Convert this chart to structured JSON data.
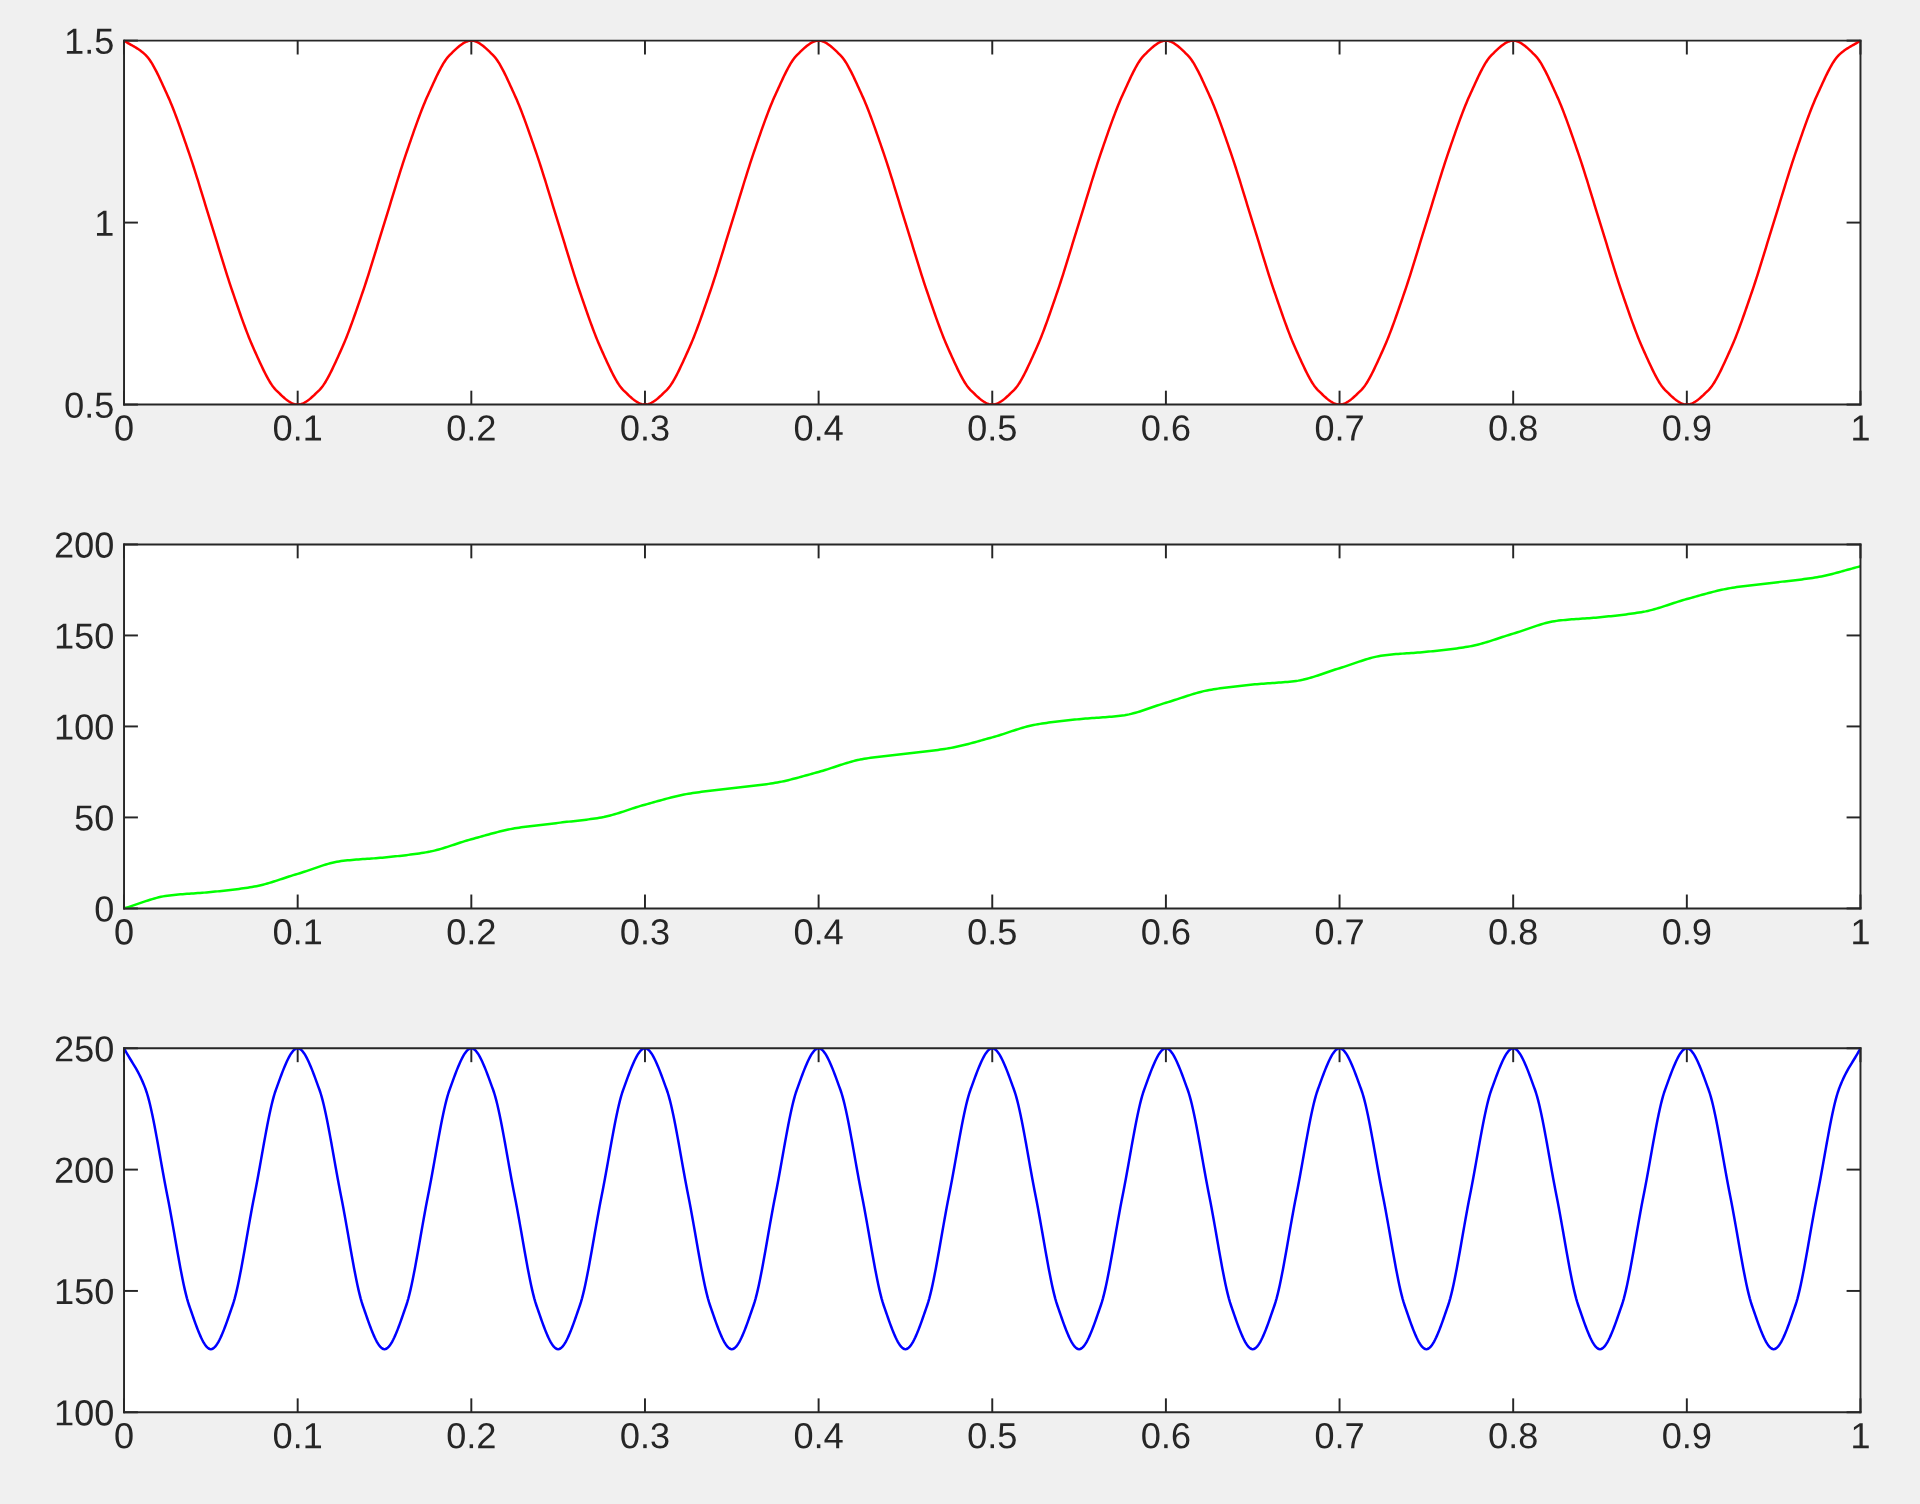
{
  "chart_data": [
    {
      "type": "line",
      "xlim": [
        0,
        1
      ],
      "ylim": [
        0.5,
        1.5
      ],
      "xticks": [
        0,
        0.1,
        0.2,
        0.3,
        0.4,
        0.5,
        0.6,
        0.7,
        0.8,
        0.9,
        1
      ],
      "yticks": [
        0.5,
        1,
        1.5
      ],
      "series": [
        {
          "color": "#ff0000",
          "x": [
            0,
            0.0125,
            0.025,
            0.0375,
            0.05,
            0.0625,
            0.075,
            0.0875,
            0.1,
            0.1125,
            0.125,
            0.1375,
            0.15,
            0.1625,
            0.175,
            0.1875,
            0.2,
            0.2125,
            0.225,
            0.2375,
            0.25,
            0.2625,
            0.275,
            0.2875,
            0.3,
            0.3125,
            0.325,
            0.3375,
            0.35,
            0.3625,
            0.375,
            0.3875,
            0.4,
            0.4125,
            0.425,
            0.4375,
            0.45,
            0.4625,
            0.475,
            0.4875,
            0.5,
            0.5125,
            0.525,
            0.5375,
            0.55,
            0.5625,
            0.575,
            0.5875,
            0.6,
            0.6125,
            0.625,
            0.6375,
            0.65,
            0.6625,
            0.675,
            0.6875,
            0.7,
            0.7125,
            0.725,
            0.7375,
            0.75,
            0.7625,
            0.775,
            0.7875,
            0.8,
            0.8125,
            0.825,
            0.8375,
            0.85,
            0.8625,
            0.875,
            0.8875,
            0.9,
            0.9125,
            0.925,
            0.9375,
            0.95,
            0.9625,
            0.975,
            0.9875,
            1
          ],
          "values": [
            1.5,
            1.46,
            1.35,
            1.19,
            1,
            0.81,
            0.65,
            0.54,
            0.5,
            0.54,
            0.65,
            0.81,
            1,
            1.19,
            1.35,
            1.46,
            1.5,
            1.46,
            1.35,
            1.19,
            1,
            0.81,
            0.65,
            0.54,
            0.5,
            0.54,
            0.65,
            0.81,
            1,
            1.19,
            1.35,
            1.46,
            1.5,
            1.46,
            1.35,
            1.19,
            1,
            0.81,
            0.65,
            0.54,
            0.5,
            0.54,
            0.65,
            0.81,
            1,
            1.19,
            1.35,
            1.46,
            1.5,
            1.46,
            1.35,
            1.19,
            1,
            0.81,
            0.65,
            0.54,
            0.5,
            0.54,
            0.65,
            0.81,
            1,
            1.19,
            1.35,
            1.46,
            1.5,
            1.46,
            1.35,
            1.19,
            1,
            0.81,
            0.65,
            0.54,
            0.5,
            0.54,
            0.65,
            0.81,
            1,
            1.19,
            1.35,
            1.46,
            1.5
          ]
        }
      ]
    },
    {
      "type": "line",
      "xlim": [
        0,
        1
      ],
      "ylim": [
        0,
        200
      ],
      "xticks": [
        0,
        0.1,
        0.2,
        0.3,
        0.4,
        0.5,
        0.6,
        0.7,
        0.8,
        0.9,
        1
      ],
      "yticks": [
        0,
        50,
        100,
        150,
        200
      ],
      "series": [
        {
          "color": "#00ff00",
          "x": [
            0,
            0.025,
            0.05,
            0.075,
            0.1,
            0.125,
            0.15,
            0.175,
            0.2,
            0.225,
            0.25,
            0.275,
            0.3,
            0.325,
            0.35,
            0.375,
            0.4,
            0.425,
            0.45,
            0.475,
            0.5,
            0.525,
            0.55,
            0.575,
            0.6,
            0.625,
            0.65,
            0.675,
            0.7,
            0.725,
            0.75,
            0.775,
            0.8,
            0.825,
            0.85,
            0.875,
            0.9,
            0.925,
            0.95,
            0.975,
            1
          ],
          "values": [
            0,
            7,
            9,
            12,
            19,
            26,
            28,
            31,
            38,
            44,
            47,
            50,
            57,
            63,
            66,
            69,
            75,
            82,
            85,
            88,
            94,
            101,
            104,
            106,
            113,
            120,
            123,
            125,
            132,
            139,
            141,
            144,
            151,
            158,
            160,
            163,
            170,
            176,
            179,
            182,
            188
          ]
        }
      ]
    },
    {
      "type": "line",
      "xlim": [
        0,
        1
      ],
      "ylim": [
        100,
        250
      ],
      "xticks": [
        0,
        0.1,
        0.2,
        0.3,
        0.4,
        0.5,
        0.6,
        0.7,
        0.8,
        0.9,
        1
      ],
      "yticks": [
        100,
        150,
        200,
        250
      ],
      "series": [
        {
          "color": "#0000ff",
          "x": [
            0,
            0.0125,
            0.025,
            0.0375,
            0.05,
            0.0625,
            0.075,
            0.0875,
            0.1,
            0.1125,
            0.125,
            0.1375,
            0.15,
            0.1625,
            0.175,
            0.1875,
            0.2,
            0.2125,
            0.225,
            0.2375,
            0.25,
            0.2625,
            0.275,
            0.2875,
            0.3,
            0.3125,
            0.325,
            0.3375,
            0.35,
            0.3625,
            0.375,
            0.3875,
            0.4,
            0.4125,
            0.425,
            0.4375,
            0.45,
            0.4625,
            0.475,
            0.4875,
            0.5,
            0.5125,
            0.525,
            0.5375,
            0.55,
            0.5625,
            0.575,
            0.5875,
            0.6,
            0.6125,
            0.625,
            0.6375,
            0.65,
            0.6625,
            0.675,
            0.6875,
            0.7,
            0.7125,
            0.725,
            0.7375,
            0.75,
            0.7625,
            0.775,
            0.7875,
            0.8,
            0.8125,
            0.825,
            0.8375,
            0.85,
            0.8625,
            0.875,
            0.8875,
            0.9,
            0.9125,
            0.925,
            0.9375,
            0.95,
            0.9625,
            0.975,
            0.9875,
            1
          ],
          "values": [
            250,
            233,
            189,
            144,
            126,
            144,
            189,
            233,
            250,
            233,
            189,
            144,
            126,
            144,
            189,
            233,
            250,
            233,
            189,
            144,
            126,
            144,
            189,
            233,
            250,
            233,
            189,
            144,
            126,
            144,
            189,
            233,
            250,
            233,
            189,
            144,
            126,
            144,
            189,
            233,
            250,
            233,
            189,
            144,
            126,
            144,
            189,
            233,
            250,
            233,
            189,
            144,
            126,
            144,
            189,
            233,
            250,
            233,
            189,
            144,
            126,
            144,
            189,
            233,
            250,
            233,
            189,
            144,
            126,
            144,
            189,
            233,
            250,
            233,
            189,
            144,
            126,
            144,
            189,
            233,
            250
          ]
        }
      ]
    }
  ]
}
